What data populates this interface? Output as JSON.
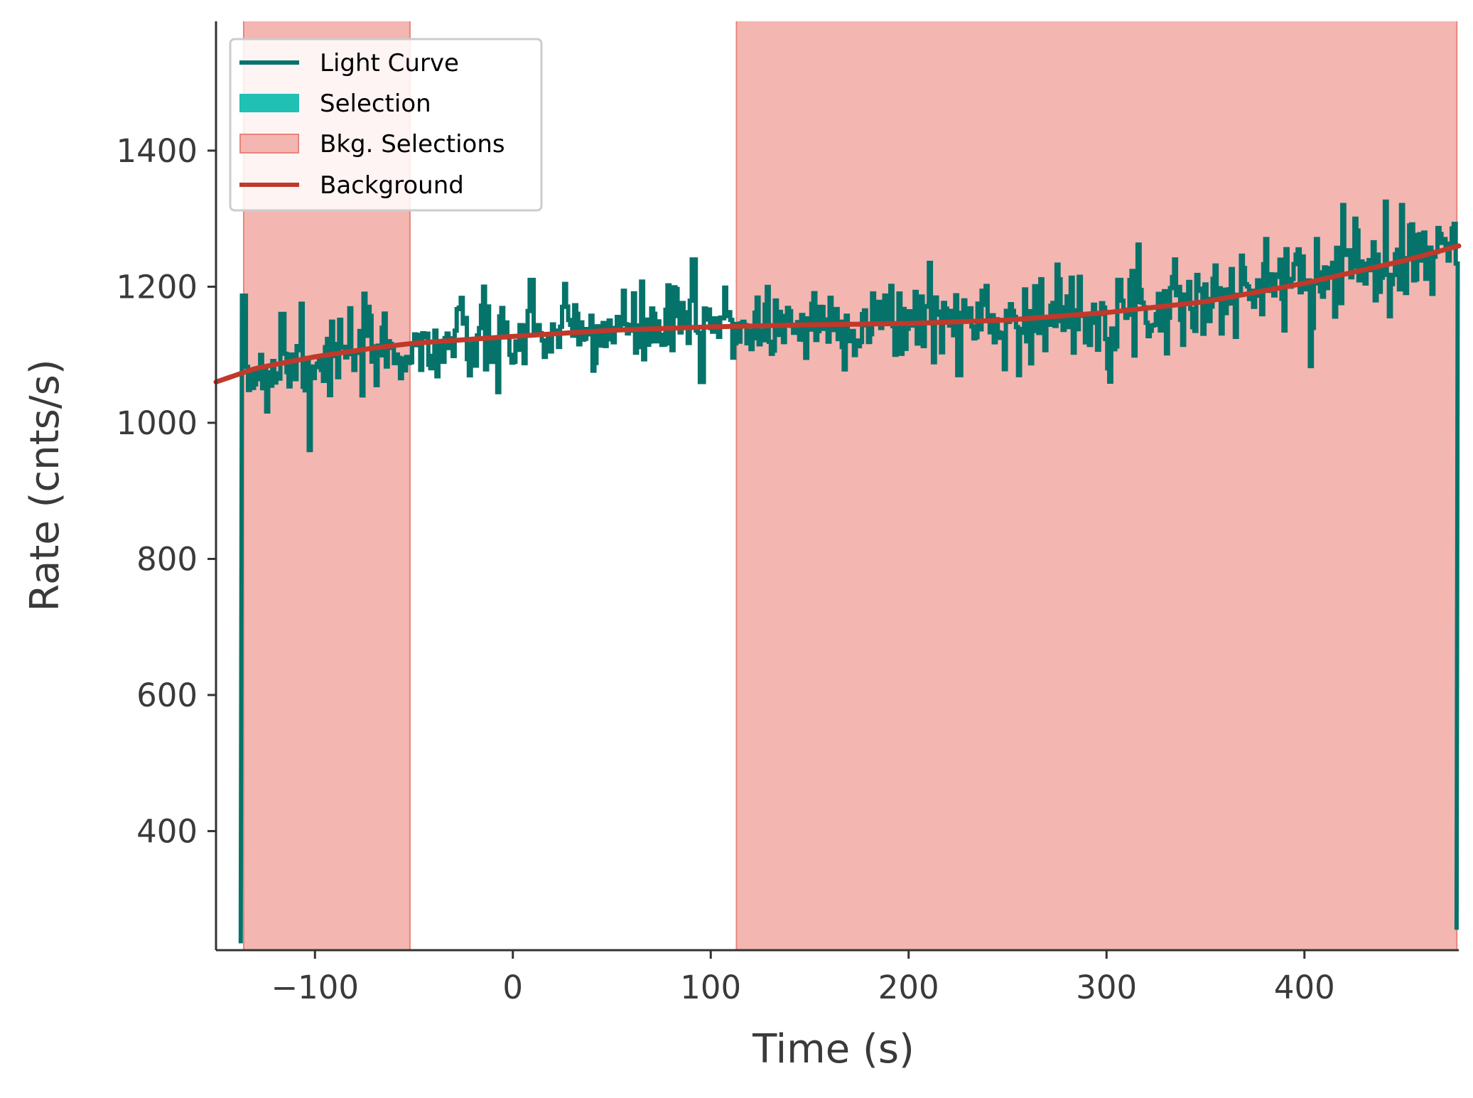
{
  "chart_data": {
    "type": "line",
    "title": "",
    "xlabel": "Time (s)",
    "ylabel": "Rate (cnts/s)",
    "xlim": [
      -150,
      478
    ],
    "ylim": [
      225,
      1590
    ],
    "xticks": [
      -100,
      0,
      100,
      200,
      300,
      400
    ],
    "xtick_labels": [
      "−100",
      "0",
      "100",
      "200",
      "300",
      "400"
    ],
    "yticks": [
      400,
      600,
      800,
      1000,
      1200,
      1400
    ],
    "ytick_labels": [
      "400",
      "600",
      "800",
      "1000",
      "1200",
      "1400"
    ],
    "grid": false,
    "legend_position": "top-left",
    "legend": [
      {
        "label": "Light Curve",
        "kind": "line",
        "color": "#06736a"
      },
      {
        "label": "Selection",
        "kind": "patch",
        "color": "#20c0b4"
      },
      {
        "label": "Bkg. Selections",
        "kind": "patch",
        "color": "#f4b6b1",
        "edge": "#e8857c"
      },
      {
        "label": "Background",
        "kind": "line",
        "color": "#c0392b"
      }
    ],
    "light_curve": {
      "name": "Light Curve",
      "color": "#06736a",
      "x_start": -137.5,
      "bin_width": 1.024,
      "start_rate": 235,
      "end_rate": 255,
      "anchors": [
        [
          -136,
          1070
        ],
        [
          -100,
          1095
        ],
        [
          -50,
          1110
        ],
        [
          0,
          1125
        ],
        [
          50,
          1135
        ],
        [
          100,
          1145
        ],
        [
          150,
          1145
        ],
        [
          200,
          1148
        ],
        [
          250,
          1153
        ],
        [
          300,
          1165
        ],
        [
          350,
          1180
        ],
        [
          400,
          1210
        ],
        [
          450,
          1240
        ],
        [
          476,
          1255
        ]
      ],
      "noise_sd": 30,
      "excursions": [
        [
          -103,
          960
        ],
        [
          -107,
          1175
        ],
        [
          -117,
          1160
        ],
        [
          -15,
          1200
        ],
        [
          9,
          1210
        ],
        [
          -8,
          1045
        ],
        [
          91,
          1240
        ],
        [
          95,
          1060
        ],
        [
          195,
          1190
        ],
        [
          210,
          1235
        ],
        [
          228,
          1180
        ],
        [
          225,
          1070
        ],
        [
          255,
          1070
        ],
        [
          300,
          1080
        ],
        [
          306,
          1210
        ],
        [
          334,
          1240
        ],
        [
          380,
          1270
        ],
        [
          406,
          1270
        ],
        [
          419,
          1320
        ],
        [
          425,
          1300
        ],
        [
          441,
          1325
        ],
        [
          449,
          1320
        ],
        [
          453,
          1290
        ],
        [
          470,
          1270
        ]
      ]
    },
    "background": {
      "name": "Background",
      "color": "#c0392b",
      "x": [
        -150,
        -130,
        -100,
        -70,
        -50,
        0,
        50,
        100,
        150,
        200,
        250,
        300,
        350,
        400,
        450,
        478
      ],
      "y": [
        1060,
        1080,
        1097,
        1110,
        1117,
        1127,
        1136,
        1141,
        1144,
        1146,
        1151,
        1162,
        1178,
        1205,
        1238,
        1260
      ]
    },
    "bkg_selections": [
      {
        "name": "Bkg. Selections",
        "x_range": [
          -136,
          -52
        ],
        "color": "#f4b6b1"
      },
      {
        "name": "Bkg. Selections",
        "x_range": [
          113,
          477
        ],
        "color": "#f4b6b1"
      }
    ]
  }
}
